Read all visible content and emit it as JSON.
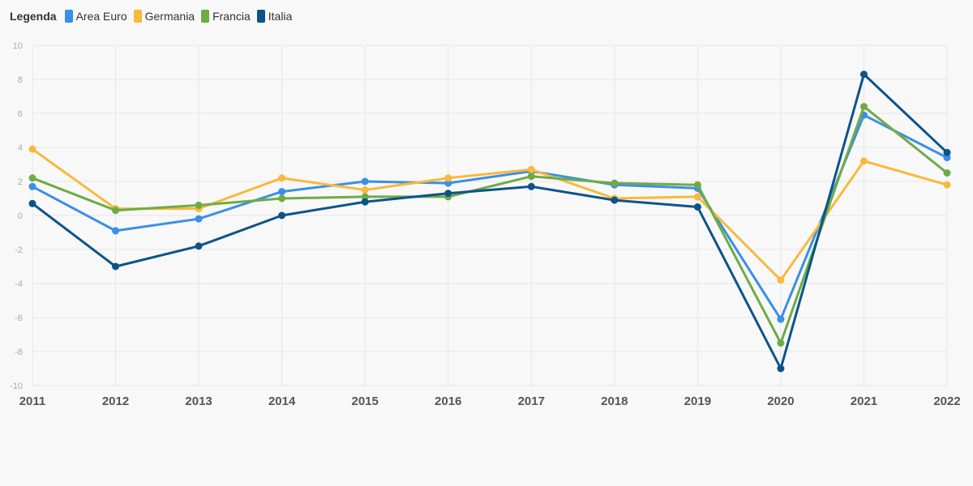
{
  "legend": {
    "title": "Legenda"
  },
  "chart_data": {
    "type": "line",
    "x": [
      "2011",
      "2012",
      "2013",
      "2014",
      "2015",
      "2016",
      "2017",
      "2018",
      "2019",
      "2020",
      "2021",
      "2022"
    ],
    "ylim": [
      -10,
      10
    ],
    "yticks": [
      10,
      8,
      6,
      4,
      2,
      0,
      -2,
      -4,
      -6,
      -8,
      -10
    ],
    "grid": true,
    "legend_position": "top-left",
    "series": [
      {
        "name": "Area Euro",
        "color": "#3a8fe6",
        "values": [
          1.7,
          -0.9,
          -0.2,
          1.4,
          2.0,
          1.9,
          2.6,
          1.8,
          1.6,
          -6.1,
          5.9,
          3.4
        ]
      },
      {
        "name": "Germania",
        "color": "#f8b93c",
        "values": [
          3.9,
          0.4,
          0.4,
          2.2,
          1.5,
          2.2,
          2.7,
          1.0,
          1.1,
          -3.8,
          3.2,
          1.8
        ]
      },
      {
        "name": "Francia",
        "color": "#6fab45",
        "values": [
          2.2,
          0.3,
          0.6,
          1.0,
          1.1,
          1.1,
          2.3,
          1.9,
          1.8,
          -7.5,
          6.4,
          2.5
        ]
      },
      {
        "name": "Italia",
        "color": "#0b5489",
        "values": [
          0.7,
          -3.0,
          -1.8,
          0.0,
          0.8,
          1.3,
          1.7,
          0.9,
          0.5,
          -9.0,
          8.3,
          3.7
        ]
      }
    ]
  }
}
